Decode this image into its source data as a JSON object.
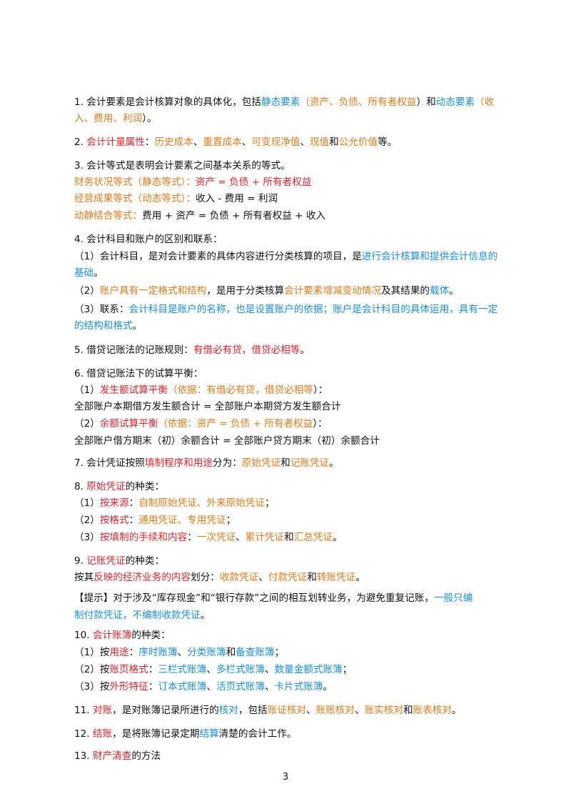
{
  "colors": {
    "red": "#d9252b",
    "orange": "#e07b1a",
    "blue": "#1a8fd6",
    "text": "#111111"
  },
  "items": {
    "i1": {
      "a": "1. 会计要素是会计核算对象的具体化，包括",
      "b": "静态要素",
      "c": "（",
      "d": "资产、负债、所有者权益",
      "e": "）和",
      "f": "动态要素",
      "g": "（",
      "h": "收",
      "i": "入、费用、利润",
      "j": "）。"
    },
    "i2": {
      "a": "2. ",
      "b": "会计计量属性",
      "c": "：",
      "d": "历史成本",
      "e": "、",
      "f": "重置成本",
      "g": "、",
      "h": "可变现净值",
      "i": "、",
      "j": "现值",
      "k": "和",
      "l": "公允价值",
      "m": "等。"
    },
    "i3": {
      "title": "3. 会计等式是表明会计要素之间基本关系的等式。",
      "l1a": "财务状况等式（静态等式）：",
      "l1b": "资产 = 负债 + 所有者权益",
      "l2a": "经营成果等式（动态等式）：",
      "l2b": "收入 - 费用 = 利润",
      "l3a": "动静结合等式：",
      "l3b": "费用 + 资产 = 负债 + 所有者权益 + 收入"
    },
    "i4": {
      "title": "4. 会计科目和账户的区别和联系：",
      "p1a": "（1）会计科目，是对会计要素的具体内容进行分类核算的项目，是",
      "p1b": "进行会计核算和提供会计信息的",
      "p1c": "基础",
      "p1d": "。",
      "p2a": "（2）",
      "p2b": "账户具有一定格式和结构",
      "p2c": "，是用于分类核算",
      "p2d": "会计要素增减变动情况",
      "p2e": "及其结果的",
      "p2f": "载体",
      "p2g": "。",
      "p3a": "（3）联系：",
      "p3b": "会计科目是账户的名称，也是设置账户的依据；账户是会计科目的具体运用，具有一定",
      "p3c": "的结构和格式",
      "p3d": "。"
    },
    "i5": {
      "a": "5. 借贷记账法的记账规则：",
      "b": "有借必有贷，借贷必相等",
      "c": "。"
    },
    "i6": {
      "title": "6. 借贷记账法下的试算平衡：",
      "l1a": "（1）",
      "l1b": "发生额试算平衡",
      "l1c": "（依据：有借必有贷，借贷必相等",
      "l1d": "）：",
      "l2": "全部账户本期借方发生额合计 = 全部账户本期贷方发生额合计",
      "l3a": "（2）",
      "l3b": "余额试算平衡",
      "l3c": "（依据：资产 = 负债 + 所有者权益",
      "l3d": "）：",
      "l4": "全部账户借方期末（初）余额合计 = 全部账户贷方期末（初）余额合计"
    },
    "i7": {
      "a": "7. 会计凭证按照",
      "b": "填制程序和用途",
      "c": "分为：",
      "d": "原始凭证",
      "e": "和",
      "f": "记账凭证",
      "g": "。"
    },
    "i8": {
      "a": "8. ",
      "b": "原始凭证",
      "c": "的种类：",
      "l1a": "（1）",
      "l1b": "按来源",
      "l1c": "：",
      "l1d": "自制原始凭证、外来原始凭证",
      "l1e": "；",
      "l2a": "（2）",
      "l2b": "按格式",
      "l2c": "：",
      "l2d": "通用凭证、专用凭证",
      "l2e": "；",
      "l3a": "（3）",
      "l3b": "按填制的手续和内容",
      "l3c": "：",
      "l3d": "一次凭证",
      "l3e": "、",
      "l3f": "累计凭证",
      "l3g": "和",
      "l3h": "汇总凭证",
      "l3i": "。"
    },
    "i9": {
      "a": "9. ",
      "b": "记账凭证",
      "c": "的种类：",
      "l1a": "按其",
      "l1b": "反映的经济业务的内容",
      "l1c": "划分：",
      "l1d": "收款凭证",
      "l1e": "、",
      "l1f": "付款凭证",
      "l1g": "和",
      "l1h": "转账凭证",
      "l1i": "。",
      "t1a": "【提示】对于涉及“库存现金”和“银行存款”之间的相互划转业务，为避免重复记账，",
      "t1b": "一般只编",
      "t2a": "制付款凭证，不编制收款凭证",
      "t2b": "。"
    },
    "i10": {
      "a": "10. ",
      "b": "会计账簿",
      "c": "的种类：",
      "l1a": "（1）按",
      "l1b": "用途",
      "l1c": "：",
      "l1d": "序时账簿",
      "l1e": "、",
      "l1f": "分类账簿",
      "l1g": "和",
      "l1h": "备查账簿",
      "l1i": "；",
      "l2a": "（2）按",
      "l2b": "账页格式",
      "l2c": "：",
      "l2d": "三栏式账簿",
      "l2e": "、",
      "l2f": "多栏式账簿",
      "l2g": "、",
      "l2h": "数量金额式账簿",
      "l2i": "；",
      "l3a": "（3）按",
      "l3b": "外形特征",
      "l3c": "：",
      "l3d": "订本式账簿",
      "l3e": "、",
      "l3f": "活页式账簿",
      "l3g": "、",
      "l3h": "卡片式账簿",
      "l3i": "。"
    },
    "i11": {
      "a": "11. ",
      "b": "对账",
      "c": "，是对账簿记录所进行的",
      "d": "核对",
      "e": "，包括",
      "f": "账证核对",
      "g": "、",
      "h": "账账核对",
      "i": "、",
      "j": "账实核对",
      "k": "和",
      "l": "账表核对",
      "m": "。"
    },
    "i12": {
      "a": "12. ",
      "b": "结账",
      "c": "，是将账簿记录定期",
      "d": "结算",
      "e": "清楚的会计工作。"
    },
    "i13": {
      "a": "13. ",
      "b": "财产清查",
      "c": "的方法"
    }
  },
  "page_number": "3"
}
